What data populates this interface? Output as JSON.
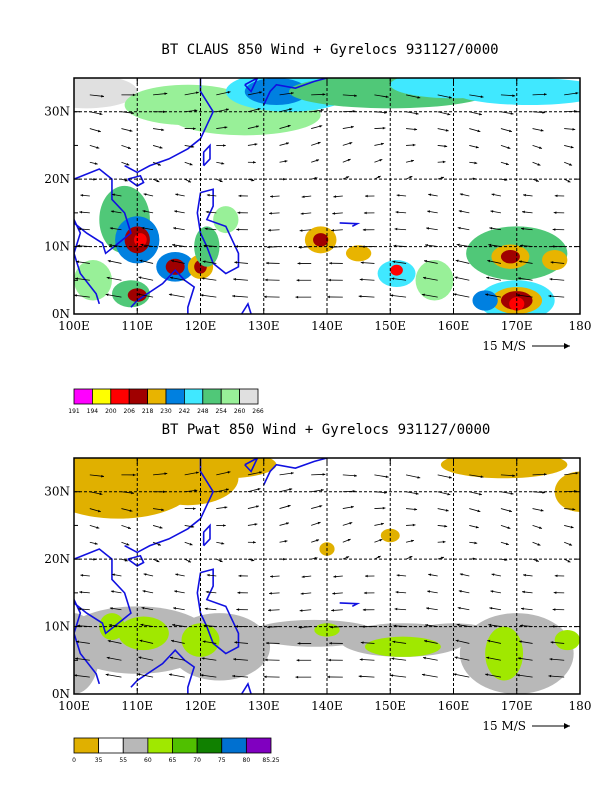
{
  "chart_data": [
    {
      "type": "heatmap",
      "title": "BT CLAUS 850 Wind + Gyrelocs 931127/0000",
      "x_ticks": [
        "100E",
        "110E",
        "120E",
        "130E",
        "140E",
        "150E",
        "160E",
        "170E",
        "180"
      ],
      "y_ticks": [
        "0N",
        "10N",
        "20N",
        "30N"
      ],
      "x_range": [
        100,
        180
      ],
      "y_range": [
        0,
        35
      ],
      "reference_vector": "15 M/S",
      "colorbar": {
        "labels": [
          "191",
          "194",
          "200",
          "206",
          "218",
          "230",
          "242",
          "248",
          "254",
          "260",
          "266"
        ],
        "colors": [
          "#ff00ff",
          "#ffff00",
          "#ff0000",
          "#a00000",
          "#e8b400",
          "#0080e0",
          "#40e8ff",
          "#50c878",
          "#98f098",
          "#e0e0e0"
        ]
      }
    },
    {
      "type": "heatmap",
      "title": "BT Pwat 850 Wind + Gyrelocs 931127/0000",
      "x_ticks": [
        "100E",
        "110E",
        "120E",
        "130E",
        "140E",
        "150E",
        "160E",
        "170E",
        "180"
      ],
      "y_ticks": [
        "0N",
        "10N",
        "20N",
        "30N"
      ],
      "x_range": [
        100,
        180
      ],
      "y_range": [
        0,
        35
      ],
      "reference_vector": "15 M/S",
      "colorbar": {
        "labels": [
          "0",
          "35",
          "55",
          "60",
          "65",
          "70",
          "75",
          "80",
          "85.25"
        ],
        "colors": [
          "#e0b000",
          "#ffffff",
          "#b8b8b8",
          "#a0e800",
          "#50c000",
          "#108000",
          "#0070d0",
          "#8000c0"
        ]
      }
    }
  ]
}
